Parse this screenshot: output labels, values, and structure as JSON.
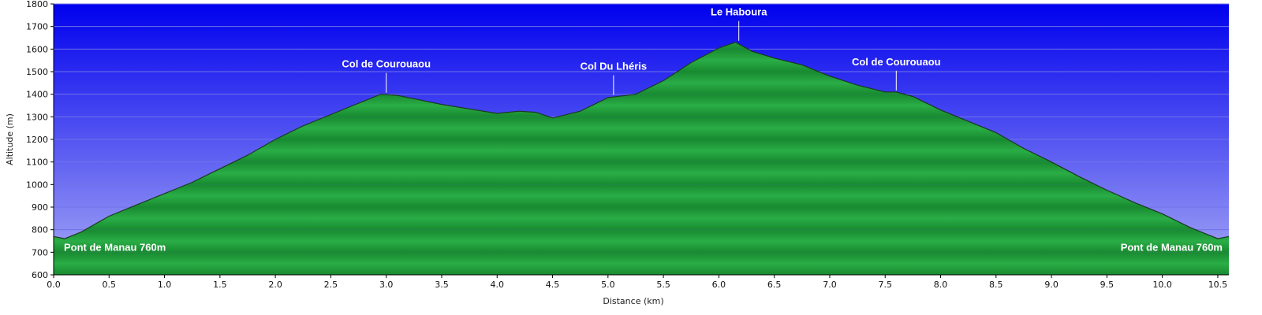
{
  "chart_data": {
    "type": "area",
    "xlabel": "Distance (km)",
    "ylabel": "Altitude (m)",
    "xlim": [
      0,
      10.6
    ],
    "ylim": [
      600,
      1800
    ],
    "x_ticks": [
      0.0,
      0.5,
      1.0,
      1.5,
      2.0,
      2.5,
      3.0,
      3.5,
      4.0,
      4.5,
      5.0,
      5.5,
      6.0,
      6.5,
      7.0,
      7.5,
      8.0,
      8.5,
      9.0,
      9.5,
      10.0,
      10.5
    ],
    "x_tick_labels": [
      "0.0",
      "0.5",
      "1.0",
      "1.5",
      "2.0",
      "2.5",
      "3.0",
      "3.5",
      "4.0",
      "4.5",
      "5.0",
      "5.5",
      "6.0",
      "6.5",
      "7.0",
      "7.5",
      "8.0",
      "8.5",
      "9.0",
      "9.5",
      "10.0",
      "10.5"
    ],
    "y_ticks": [
      600,
      700,
      800,
      900,
      1000,
      1100,
      1200,
      1300,
      1400,
      1500,
      1600,
      1700,
      1800
    ],
    "y_tick_labels": [
      "600",
      "700",
      "800",
      "900",
      "1000",
      "1100",
      "1200",
      "1300",
      "1400",
      "1500",
      "1600",
      "1700",
      "1800"
    ],
    "grid": "horizontal",
    "x": [
      0.0,
      0.1,
      0.25,
      0.5,
      0.75,
      1.0,
      1.25,
      1.5,
      1.75,
      2.0,
      2.25,
      2.5,
      2.75,
      2.95,
      3.1,
      3.3,
      3.5,
      3.75,
      4.0,
      4.2,
      4.35,
      4.5,
      4.75,
      5.0,
      5.25,
      5.5,
      5.75,
      6.0,
      6.15,
      6.3,
      6.5,
      6.75,
      7.0,
      7.25,
      7.5,
      7.6,
      7.75,
      8.0,
      8.25,
      8.5,
      8.75,
      9.0,
      9.25,
      9.5,
      9.75,
      10.0,
      10.25,
      10.5,
      10.6
    ],
    "y": [
      770,
      760,
      790,
      860,
      910,
      960,
      1010,
      1070,
      1130,
      1200,
      1260,
      1310,
      1360,
      1400,
      1395,
      1375,
      1355,
      1335,
      1315,
      1325,
      1320,
      1295,
      1325,
      1385,
      1400,
      1460,
      1540,
      1605,
      1630,
      1590,
      1560,
      1530,
      1480,
      1440,
      1410,
      1410,
      1390,
      1330,
      1280,
      1230,
      1160,
      1100,
      1035,
      975,
      920,
      870,
      810,
      760,
      770
    ],
    "annotations": [
      {
        "text": "Col de Courouaou",
        "x": 3.0,
        "y": 1400
      },
      {
        "text": "Col Du Lhéris",
        "x": 5.05,
        "y": 1390
      },
      {
        "text": "Le Haboura",
        "x": 6.18,
        "y": 1630
      },
      {
        "text": "Col de Courouaou",
        "x": 7.6,
        "y": 1410
      }
    ],
    "corner_labels": {
      "start": "Pont de Manau 760m",
      "end": "Pont de Manau 760m"
    },
    "colors": {
      "sky_top": "#0000ee",
      "sky_bottom": "#a8aaf5",
      "terrain_light": "#2aad46",
      "terrain_dark": "#188a30",
      "outline": "#1b3a20"
    }
  }
}
